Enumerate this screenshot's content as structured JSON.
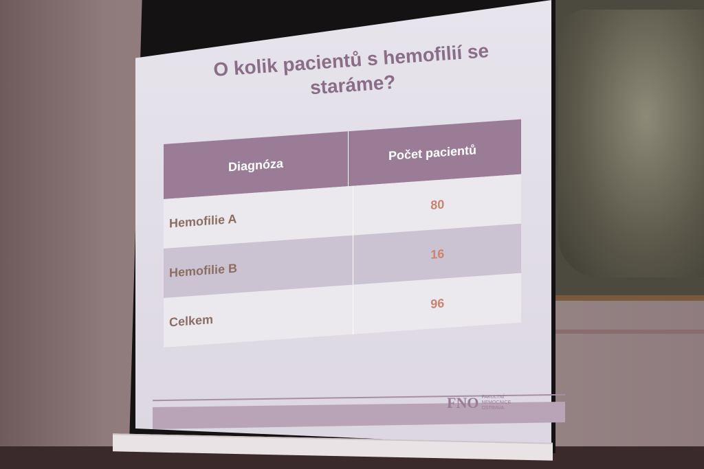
{
  "slide": {
    "title_line1": "O kolik pacientů s hemofilií se",
    "title_line2": "staráme?",
    "table": {
      "headers": [
        "Diagnóza",
        "Počet pacientů"
      ],
      "rows": [
        {
          "diagnosis": "Hemofilie  A",
          "count": "80"
        },
        {
          "diagnosis": "Hemofilie  B",
          "count": "16"
        },
        {
          "diagnosis": "Celkem",
          "count": "96"
        }
      ]
    },
    "logo": {
      "mark": "FNO",
      "text_lines": [
        "FAKULTNÍ",
        "NEMOCNICE",
        "OSTRAVA"
      ]
    }
  },
  "colors": {
    "accent_purple": "#9b7c97",
    "value_orange": "#c7856f"
  }
}
